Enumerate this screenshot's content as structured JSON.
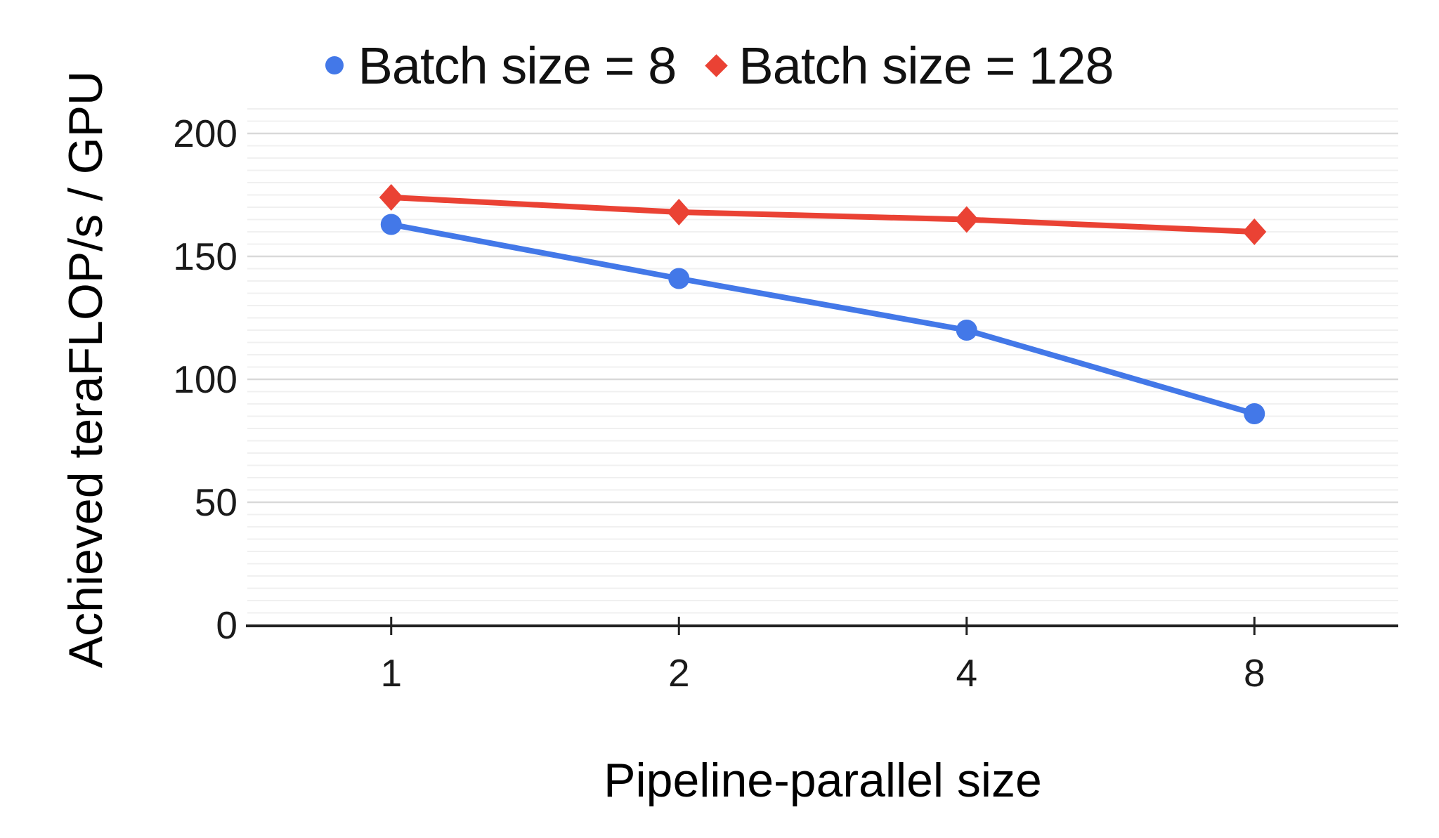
{
  "chart_data": {
    "type": "line",
    "title": "",
    "xlabel": "Pipeline-parallel size",
    "ylabel": "Achieved teraFLOP/s / GPU",
    "categories": [
      "1",
      "2",
      "4",
      "8"
    ],
    "series": [
      {
        "name": "Batch size = 8",
        "color": "#4378e8",
        "marker": "circle",
        "values": [
          163,
          141,
          120,
          86
        ]
      },
      {
        "name": "Batch size = 128",
        "color": "#ea4234",
        "marker": "diamond",
        "values": [
          174,
          168,
          165,
          160
        ]
      }
    ],
    "y_ticks": [
      0,
      50,
      100,
      150,
      200
    ],
    "ylim": [
      0,
      210
    ],
    "minor_grid_step": 5,
    "major_grid_step": 50,
    "grid": true,
    "legend_position": "top",
    "colors": {
      "axis": "#212121",
      "tick_label": "#1a1a1a",
      "major_grid": "#d9d9d9",
      "minor_grid": "#f0f0f0",
      "background": "#ffffff"
    }
  }
}
